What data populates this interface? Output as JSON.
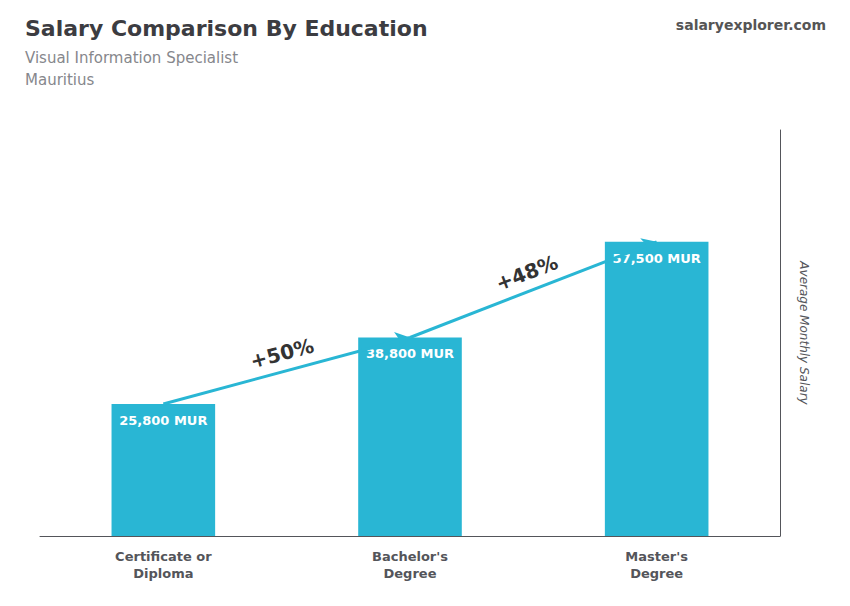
{
  "chart_data": {
    "type": "bar",
    "title": "Salary Comparison By Education",
    "subtitle": [
      "Visual Information Specialist",
      "Mauritius"
    ],
    "ylabel": "Average Monthly Salary",
    "categories": [
      "Certificate or\nDiploma",
      "Bachelor's\nDegree",
      "Master's\nDegree"
    ],
    "values": [
      25800,
      38800,
      57500
    ],
    "value_labels": [
      "25,800 MUR",
      "38,800 MUR",
      "57,500 MUR"
    ],
    "data_labels": true,
    "color": "#29b6d4",
    "ylim": [
      0,
      79350
    ],
    "tick_labels": "x",
    "grid": false,
    "annotations": [
      {
        "text": "+50%",
        "from": "Certificate or\nDiploma",
        "to": "Bachelor's\nDegree"
      },
      {
        "text": "+48%",
        "from": "Bachelor's\nDegree",
        "to": "Master's\nDegree"
      },
      {
        "text": "salaryexplorer.com"
      }
    ]
  }
}
